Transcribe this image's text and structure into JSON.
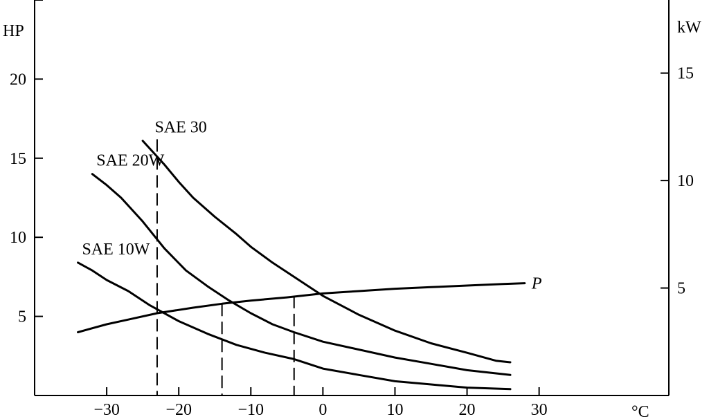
{
  "chart_data": {
    "type": "line",
    "xlabel": "°C",
    "ylabel_left": "HP",
    "ylabel_right": "kW",
    "xlim": [
      -40,
      48
    ],
    "ylim_left": [
      0,
      25
    ],
    "ylim_right": [
      0,
      18.4
    ],
    "xticks": [
      -30,
      -20,
      -10,
      0,
      10,
      20,
      30
    ],
    "xtick_labels": [
      "−30",
      "−20",
      "−10",
      "0",
      "10",
      "20",
      "30"
    ],
    "yticks_left": [
      5,
      10,
      15,
      20,
      25
    ],
    "ytick_labels_left": [
      "5",
      "10",
      "15",
      "20",
      ""
    ],
    "yticks_right": [
      5,
      10,
      15
    ],
    "ytick_labels_right": [
      "5",
      "10",
      "15"
    ],
    "grid": false,
    "legend": "none",
    "series": [
      {
        "name": "SAE 30",
        "x": [
          -25,
          -22,
          -20,
          -18,
          -15,
          -12,
          -10,
          -7,
          -5,
          -2,
          0,
          5,
          10,
          15,
          20,
          24,
          26
        ],
        "y": [
          16.1,
          14.6,
          13.5,
          12.5,
          11.3,
          10.2,
          9.4,
          8.4,
          7.8,
          6.9,
          6.3,
          5.1,
          4.1,
          3.3,
          2.7,
          2.2,
          2.1
        ]
      },
      {
        "name": "SAE 20W",
        "x": [
          -32,
          -30,
          -28,
          -25,
          -22,
          -19,
          -16,
          -13,
          -10,
          -7,
          -4,
          0,
          5,
          10,
          15,
          20,
          26
        ],
        "y": [
          14.0,
          13.3,
          12.5,
          11.0,
          9.3,
          7.9,
          6.9,
          6.0,
          5.2,
          4.5,
          4.0,
          3.4,
          2.9,
          2.4,
          2.0,
          1.6,
          1.3
        ]
      },
      {
        "name": "SAE 10W",
        "x": [
          -34,
          -32,
          -30,
          -27,
          -24,
          -20,
          -16,
          -12,
          -8,
          -4,
          0,
          5,
          10,
          15,
          20,
          26
        ],
        "y": [
          8.4,
          7.9,
          7.3,
          6.6,
          5.7,
          4.7,
          3.9,
          3.2,
          2.7,
          2.3,
          1.7,
          1.3,
          0.9,
          0.7,
          0.5,
          0.4
        ]
      },
      {
        "name": "P",
        "x": [
          -34,
          -30,
          -27,
          -23,
          -18,
          -14,
          -10,
          -5,
          0,
          5,
          10,
          15,
          20,
          25,
          28
        ],
        "y": [
          4.0,
          4.5,
          4.8,
          5.2,
          5.55,
          5.8,
          6.0,
          6.2,
          6.45,
          6.6,
          6.75,
          6.85,
          6.95,
          7.05,
          7.1
        ]
      }
    ],
    "annotations": [
      {
        "type": "dashed-vertical",
        "x": -23,
        "y_top": 16.2
      },
      {
        "type": "dashed-vertical",
        "x": -14,
        "y_top": 5.8
      },
      {
        "type": "dashed-vertical",
        "x": -4,
        "y_top": 6.3
      }
    ],
    "series_labels": [
      {
        "text": "SAE 30",
        "series": "SAE 30",
        "style": "normal"
      },
      {
        "text": "SAE 20W",
        "series": "SAE 20W",
        "style": "normal"
      },
      {
        "text": "SAE 10W",
        "series": "SAE 10W",
        "style": "normal"
      },
      {
        "text": "P",
        "series": "P",
        "style": "italic"
      }
    ]
  }
}
